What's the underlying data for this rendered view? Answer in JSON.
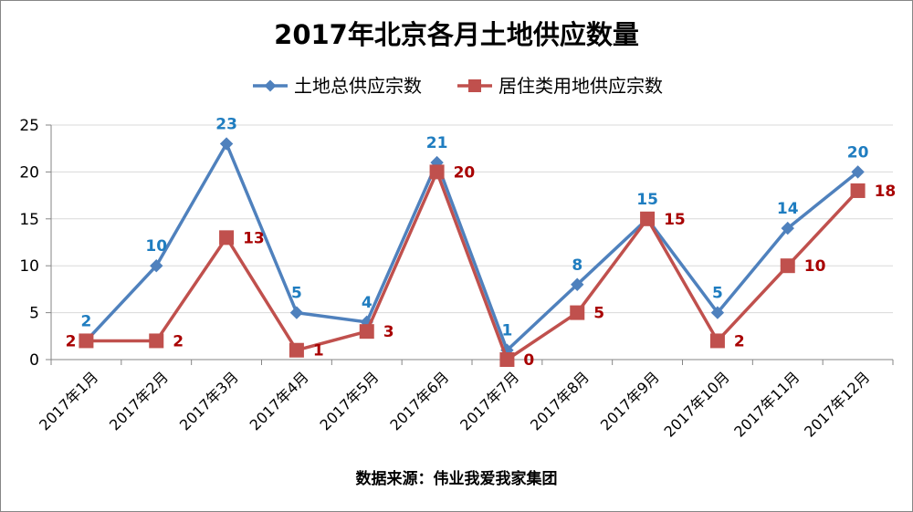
{
  "chart_data": {
    "type": "line",
    "title": "2017年北京各月土地供应数量",
    "categories": [
      "2017年1月",
      "2017年2月",
      "2017年3月",
      "2017年4月",
      "2017年5月",
      "2017年6月",
      "2017年7月",
      "2017年8月",
      "2017年9月",
      "2017年10月",
      "2017年11月",
      "2017年12月"
    ],
    "series": [
      {
        "name": "土地总供应宗数",
        "values": [
          2,
          10,
          23,
          5,
          4,
          21,
          1,
          8,
          15,
          5,
          14,
          20
        ],
        "color": "#4F81BD",
        "label_color": "#1F7DC0",
        "marker": "diamond"
      },
      {
        "name": "居住类用地供应宗数",
        "values": [
          2,
          2,
          13,
          1,
          3,
          20,
          0,
          5,
          15,
          2,
          10,
          18
        ],
        "color": "#C0504D",
        "label_color": "#A80000",
        "marker": "square"
      }
    ],
    "ylim": [
      0,
      25
    ],
    "yticks": [
      0,
      5,
      10,
      15,
      20,
      25
    ],
    "grid": true,
    "legend_position": "top",
    "source": "数据来源：伟业我爱我家集团"
  }
}
